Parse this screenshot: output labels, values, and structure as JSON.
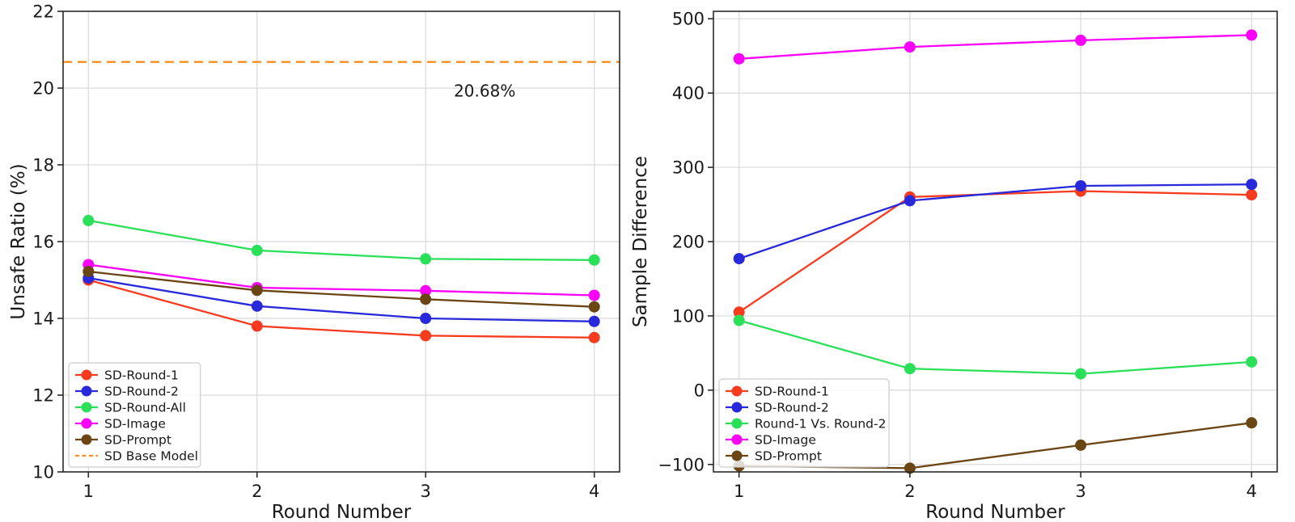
{
  "figure": {
    "background": "#ffffff",
    "grid_color": "#d9d9d9",
    "spine_color": "#2b2b2b",
    "legend_border_color": "#cccccc"
  },
  "chart_data": [
    {
      "type": "line",
      "title": "",
      "xlabel": "Round Number",
      "ylabel": "Unsafe Ratio (%)",
      "x": [
        1,
        2,
        3,
        4
      ],
      "xticks": [
        1,
        2,
        3,
        4
      ],
      "yticks": [
        10,
        12,
        14,
        16,
        18,
        20,
        22
      ],
      "xlim": [
        0.85,
        4.15
      ],
      "ylim": [
        10,
        22
      ],
      "grid": true,
      "legend_position": "lower-left",
      "series": [
        {
          "name": "SD-Round-1",
          "color": "#f73b1f",
          "marker": "circle",
          "values": [
            15.0,
            13.8,
            13.55,
            13.5
          ]
        },
        {
          "name": "SD-Round-2",
          "color": "#2929dc",
          "marker": "circle",
          "values": [
            15.05,
            14.32,
            14.0,
            13.92
          ]
        },
        {
          "name": "SD-Round-All",
          "color": "#2ae058",
          "marker": "circle",
          "values": [
            16.55,
            15.77,
            15.55,
            15.52
          ]
        },
        {
          "name": "SD-Image",
          "color": "#fa00fa",
          "marker": "circle",
          "values": [
            15.4,
            14.8,
            14.72,
            14.6
          ]
        },
        {
          "name": "SD-Prompt",
          "color": "#6b4514",
          "marker": "circle",
          "values": [
            15.22,
            14.73,
            14.5,
            14.3
          ]
        }
      ],
      "baseline": {
        "name": "SD Base Model",
        "value": 20.68,
        "color": "#ff8c1e",
        "style": "dashed",
        "annotation": "20.68%",
        "annotation_x": 3.35,
        "annotation_y": 19.93
      }
    },
    {
      "type": "line",
      "title": "",
      "xlabel": "Round Number",
      "ylabel": "Sample Difference",
      "x": [
        1,
        2,
        3,
        4
      ],
      "xticks": [
        1,
        2,
        3,
        4
      ],
      "yticks": [
        -100,
        0,
        100,
        200,
        300,
        400,
        500
      ],
      "xlim": [
        0.85,
        4.15
      ],
      "ylim": [
        -110,
        510
      ],
      "grid": true,
      "legend_position": "lower-left",
      "series": [
        {
          "name": "SD-Round-1",
          "color": "#f73b1f",
          "marker": "circle",
          "values": [
            105,
            260,
            268,
            263
          ]
        },
        {
          "name": "SD-Round-2",
          "color": "#2929dc",
          "marker": "circle",
          "values": [
            177,
            255,
            275,
            277
          ]
        },
        {
          "name": "Round-1 Vs. Round-2",
          "color": "#2ae058",
          "marker": "circle",
          "values": [
            94,
            29,
            22,
            38
          ]
        },
        {
          "name": "SD-Image",
          "color": "#fa00fa",
          "marker": "circle",
          "values": [
            446,
            462,
            471,
            478
          ]
        },
        {
          "name": "SD-Prompt",
          "color": "#6b4514",
          "marker": "circle",
          "values": [
            -102,
            -105,
            -74,
            -44
          ]
        }
      ]
    }
  ]
}
